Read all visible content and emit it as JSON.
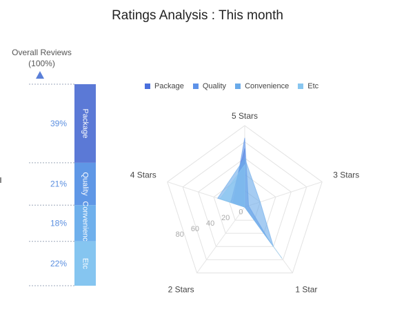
{
  "title": "Ratings Analysis : This month",
  "overall": {
    "label": "Overall Reviews",
    "percent": "(100%)"
  },
  "chart_data": [
    {
      "type": "bar",
      "stacked": true,
      "orientation": "vertical",
      "categories": [
        "Package",
        "Quality",
        "Convenience",
        "Etc"
      ],
      "values": [
        39,
        21,
        18,
        22
      ],
      "value_labels": [
        "39%",
        "21%",
        "18%",
        "22%"
      ],
      "colors": [
        "#5b79d6",
        "#5f97e6",
        "#6fb0ec",
        "#85c5f0"
      ],
      "ylim": [
        0,
        100
      ]
    },
    {
      "type": "radar",
      "axes": [
        "5 Stars",
        "3 Stars",
        "1 Star",
        "2 Stars",
        "4 Stars"
      ],
      "radial_ticks": [
        "0",
        "20",
        "40",
        "60",
        "80"
      ],
      "rlim": [
        0,
        100
      ],
      "grid": true,
      "legend": [
        "Package",
        "Quality",
        "Convenience",
        "Etc"
      ],
      "legend_position": "top",
      "series": [
        {
          "name": "Package",
          "color": "#4a6fdc",
          "values": [
            72,
            0,
            55,
            0,
            18
          ]
        },
        {
          "name": "Quality",
          "color": "#5d92e8",
          "values": [
            85,
            5,
            50,
            0,
            15
          ]
        },
        {
          "name": "Convenience",
          "color": "#6aaae9",
          "values": [
            60,
            20,
            60,
            0,
            35
          ]
        },
        {
          "name": "Etc",
          "color": "#88c6f0",
          "values": [
            52,
            0,
            78,
            0,
            32
          ]
        }
      ]
    }
  ]
}
